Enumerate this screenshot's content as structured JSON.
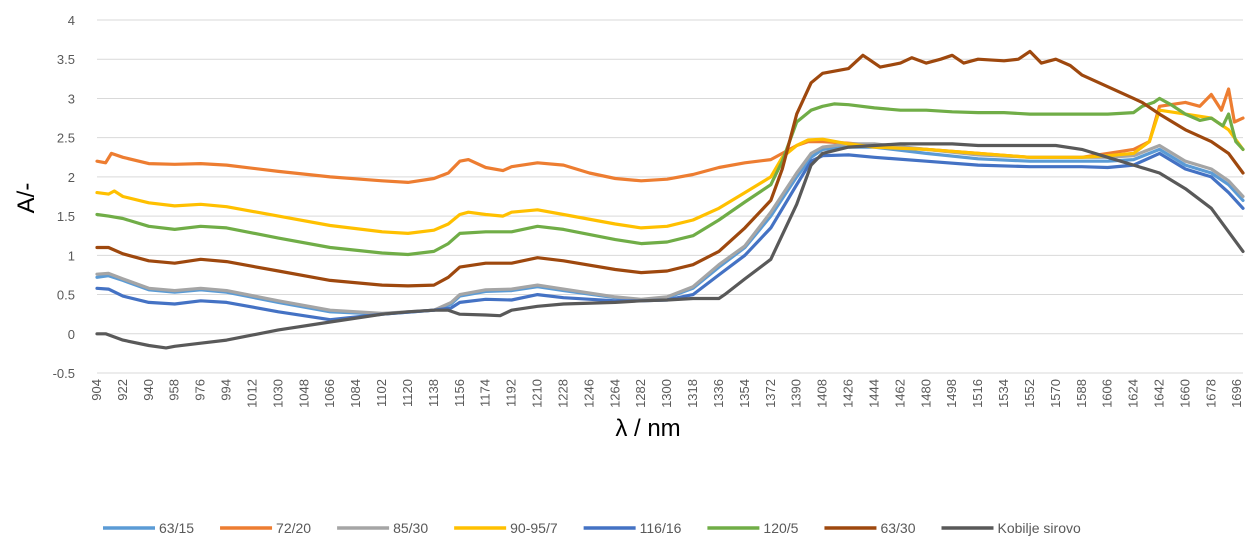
{
  "chart_data": {
    "type": "line",
    "title": "",
    "xlabel": "λ / nm",
    "ylabel": "A/-",
    "ylim": [
      -0.5,
      4
    ],
    "yticks": [
      -0.5,
      0,
      0.5,
      1,
      1.5,
      2,
      2.5,
      3,
      3.5,
      4
    ],
    "ytick_labels": [
      "-0.5",
      "0",
      "0.5",
      "1",
      "1.5",
      "2",
      "2.5",
      "3",
      "3.5",
      "4"
    ],
    "xlim": [
      904,
      1700
    ],
    "xticks": [
      904,
      922,
      940,
      958,
      976,
      994,
      1012,
      1030,
      1048,
      1066,
      1084,
      1102,
      1120,
      1138,
      1156,
      1174,
      1192,
      1210,
      1228,
      1246,
      1264,
      1282,
      1300,
      1318,
      1336,
      1354,
      1372,
      1390,
      1408,
      1426,
      1444,
      1462,
      1480,
      1498,
      1516,
      1534,
      1552,
      1570,
      1588,
      1606,
      1624,
      1642,
      1660,
      1678,
      1696
    ],
    "xtick_labels": [
      "904",
      "922",
      "940",
      "958",
      "976",
      "994",
      "1012",
      "1030",
      "1048",
      "1066",
      "1084",
      "1102",
      "1120",
      "1138",
      "1156",
      "1174",
      "1192",
      "1210",
      "1228",
      "1246",
      "1264",
      "1282",
      "1300",
      "1318",
      "1336",
      "1354",
      "1372",
      "1390",
      "1408",
      "1426",
      "1444",
      "1462",
      "1480",
      "1498",
      "1516",
      "1534",
      "1552",
      "1570",
      "1588",
      "1606",
      "1624",
      "1642",
      "1660",
      "1678",
      "1696"
    ],
    "grid": "horizontal",
    "legend_position": "bottom",
    "series": [
      {
        "name": "63/15",
        "color": "#5b9bd5",
        "x": [
          904,
          912,
          922,
          940,
          958,
          976,
          994,
          1030,
          1066,
          1102,
          1138,
          1150,
          1156,
          1174,
          1192,
          1210,
          1228,
          1264,
          1282,
          1300,
          1318,
          1336,
          1354,
          1372,
          1390,
          1400,
          1408,
          1426,
          1444,
          1480,
          1516,
          1552,
          1588,
          1606,
          1624,
          1642,
          1660,
          1678,
          1690,
          1700
        ],
        "y": [
          0.72,
          0.74,
          0.68,
          0.56,
          0.53,
          0.56,
          0.53,
          0.4,
          0.28,
          0.25,
          0.3,
          0.38,
          0.48,
          0.54,
          0.55,
          0.6,
          0.55,
          0.46,
          0.43,
          0.46,
          0.58,
          0.85,
          1.1,
          1.5,
          2.0,
          2.25,
          2.35,
          2.38,
          2.38,
          2.3,
          2.23,
          2.2,
          2.2,
          2.2,
          2.22,
          2.35,
          2.15,
          2.05,
          1.9,
          1.7
        ]
      },
      {
        "name": "72/20",
        "color": "#ed7d31",
        "x": [
          904,
          910,
          914,
          922,
          940,
          958,
          976,
          994,
          1030,
          1066,
          1102,
          1120,
          1138,
          1148,
          1156,
          1162,
          1174,
          1186,
          1192,
          1210,
          1228,
          1246,
          1264,
          1282,
          1300,
          1318,
          1336,
          1354,
          1372,
          1380,
          1390,
          1398,
          1408,
          1426,
          1444,
          1480,
          1516,
          1552,
          1588,
          1606,
          1624,
          1635,
          1642,
          1660,
          1670,
          1678,
          1685,
          1690,
          1694,
          1700
        ],
        "y": [
          2.2,
          2.18,
          2.3,
          2.25,
          2.17,
          2.16,
          2.17,
          2.15,
          2.07,
          2.0,
          1.95,
          1.93,
          1.98,
          2.05,
          2.2,
          2.22,
          2.12,
          2.08,
          2.13,
          2.18,
          2.15,
          2.05,
          1.98,
          1.95,
          1.97,
          2.03,
          2.12,
          2.18,
          2.22,
          2.3,
          2.4,
          2.45,
          2.45,
          2.43,
          2.4,
          2.35,
          2.3,
          2.25,
          2.25,
          2.3,
          2.35,
          2.45,
          2.9,
          2.95,
          2.9,
          3.05,
          2.85,
          3.12,
          2.7,
          2.75
        ]
      },
      {
        "name": "85/30",
        "color": "#a5a5a5",
        "x": [
          904,
          912,
          922,
          940,
          958,
          976,
          994,
          1030,
          1066,
          1102,
          1138,
          1150,
          1156,
          1174,
          1192,
          1210,
          1228,
          1264,
          1282,
          1300,
          1318,
          1336,
          1354,
          1372,
          1390,
          1400,
          1408,
          1426,
          1444,
          1480,
          1516,
          1552,
          1588,
          1606,
          1624,
          1642,
          1660,
          1678,
          1690,
          1700
        ],
        "y": [
          0.76,
          0.77,
          0.7,
          0.58,
          0.55,
          0.58,
          0.55,
          0.42,
          0.3,
          0.26,
          0.3,
          0.4,
          0.5,
          0.56,
          0.57,
          0.62,
          0.57,
          0.47,
          0.44,
          0.47,
          0.6,
          0.88,
          1.12,
          1.55,
          2.05,
          2.3,
          2.38,
          2.42,
          2.42,
          2.35,
          2.28,
          2.25,
          2.25,
          2.25,
          2.27,
          2.4,
          2.2,
          2.1,
          1.95,
          1.75
        ]
      },
      {
        "name": "90-95/7",
        "color": "#ffc000",
        "x": [
          904,
          912,
          916,
          922,
          940,
          958,
          976,
          994,
          1030,
          1066,
          1102,
          1120,
          1138,
          1148,
          1156,
          1162,
          1174,
          1186,
          1192,
          1210,
          1228,
          1264,
          1282,
          1300,
          1318,
          1336,
          1354,
          1372,
          1380,
          1390,
          1398,
          1408,
          1426,
          1444,
          1480,
          1516,
          1552,
          1588,
          1606,
          1624,
          1635,
          1642,
          1660,
          1678,
          1690,
          1700
        ],
        "y": [
          1.8,
          1.78,
          1.82,
          1.75,
          1.67,
          1.63,
          1.65,
          1.62,
          1.5,
          1.38,
          1.3,
          1.28,
          1.32,
          1.4,
          1.52,
          1.55,
          1.52,
          1.5,
          1.55,
          1.58,
          1.52,
          1.4,
          1.35,
          1.37,
          1.45,
          1.6,
          1.8,
          2.0,
          2.25,
          2.4,
          2.47,
          2.48,
          2.42,
          2.38,
          2.35,
          2.3,
          2.25,
          2.25,
          2.27,
          2.3,
          2.45,
          2.85,
          2.8,
          2.75,
          2.6,
          2.35
        ]
      },
      {
        "name": "116/16",
        "color": "#4472c4",
        "x": [
          904,
          912,
          922,
          940,
          958,
          976,
          994,
          1030,
          1066,
          1102,
          1138,
          1150,
          1156,
          1174,
          1192,
          1210,
          1228,
          1264,
          1282,
          1300,
          1318,
          1336,
          1354,
          1372,
          1390,
          1400,
          1408,
          1426,
          1444,
          1480,
          1516,
          1552,
          1588,
          1606,
          1624,
          1642,
          1660,
          1678,
          1690,
          1700
        ],
        "y": [
          0.58,
          0.57,
          0.48,
          0.4,
          0.38,
          0.42,
          0.4,
          0.28,
          0.18,
          0.25,
          0.3,
          0.33,
          0.4,
          0.44,
          0.43,
          0.5,
          0.46,
          0.42,
          0.42,
          0.43,
          0.5,
          0.75,
          1.0,
          1.35,
          1.9,
          2.2,
          2.27,
          2.28,
          2.25,
          2.2,
          2.15,
          2.13,
          2.13,
          2.12,
          2.15,
          2.3,
          2.1,
          2.0,
          1.8,
          1.6
        ]
      },
      {
        "name": "120/5",
        "color": "#70ad47",
        "x": [
          904,
          912,
          922,
          940,
          958,
          976,
          994,
          1030,
          1066,
          1102,
          1120,
          1138,
          1148,
          1156,
          1174,
          1192,
          1210,
          1228,
          1264,
          1282,
          1300,
          1318,
          1336,
          1354,
          1372,
          1380,
          1390,
          1400,
          1408,
          1416,
          1426,
          1444,
          1462,
          1480,
          1498,
          1516,
          1534,
          1552,
          1570,
          1588,
          1606,
          1624,
          1630,
          1638,
          1642,
          1650,
          1660,
          1670,
          1678,
          1686,
          1690,
          1695,
          1700
        ],
        "y": [
          1.52,
          1.5,
          1.47,
          1.37,
          1.33,
          1.37,
          1.35,
          1.22,
          1.1,
          1.03,
          1.01,
          1.05,
          1.15,
          1.28,
          1.3,
          1.3,
          1.37,
          1.33,
          1.2,
          1.15,
          1.17,
          1.25,
          1.45,
          1.68,
          1.9,
          2.2,
          2.7,
          2.85,
          2.9,
          2.93,
          2.92,
          2.88,
          2.85,
          2.85,
          2.83,
          2.82,
          2.82,
          2.8,
          2.8,
          2.8,
          2.8,
          2.82,
          2.9,
          2.95,
          3.0,
          2.92,
          2.8,
          2.72,
          2.75,
          2.65,
          2.8,
          2.45,
          2.35
        ]
      },
      {
        "name": "63/30",
        "color": "#9e480e",
        "x": [
          904,
          912,
          922,
          940,
          958,
          976,
          994,
          1030,
          1066,
          1102,
          1120,
          1138,
          1148,
          1156,
          1174,
          1192,
          1210,
          1228,
          1264,
          1282,
          1300,
          1318,
          1336,
          1354,
          1372,
          1380,
          1390,
          1400,
          1408,
          1426,
          1436,
          1440,
          1448,
          1462,
          1470,
          1480,
          1490,
          1498,
          1506,
          1516,
          1534,
          1544,
          1552,
          1560,
          1570,
          1580,
          1588,
          1606,
          1624,
          1630,
          1642,
          1660,
          1678,
          1690,
          1700
        ],
        "y": [
          1.1,
          1.1,
          1.02,
          0.93,
          0.9,
          0.95,
          0.92,
          0.8,
          0.68,
          0.62,
          0.61,
          0.62,
          0.72,
          0.85,
          0.9,
          0.9,
          0.97,
          0.93,
          0.82,
          0.78,
          0.8,
          0.88,
          1.05,
          1.35,
          1.7,
          2.1,
          2.8,
          3.2,
          3.32,
          3.38,
          3.55,
          3.5,
          3.4,
          3.45,
          3.52,
          3.45,
          3.5,
          3.55,
          3.45,
          3.5,
          3.48,
          3.5,
          3.6,
          3.45,
          3.5,
          3.42,
          3.3,
          3.15,
          3.0,
          2.95,
          2.8,
          2.6,
          2.45,
          2.3,
          2.05
        ]
      },
      {
        "name": "Kobilje sirovo",
        "color": "#595959",
        "x": [
          904,
          910,
          922,
          940,
          952,
          958,
          976,
          994,
          1030,
          1066,
          1102,
          1120,
          1138,
          1148,
          1156,
          1174,
          1184,
          1192,
          1210,
          1228,
          1264,
          1282,
          1300,
          1318,
          1336,
          1340,
          1354,
          1372,
          1390,
          1400,
          1408,
          1426,
          1444,
          1462,
          1480,
          1498,
          1516,
          1534,
          1552,
          1570,
          1588,
          1606,
          1624,
          1642,
          1660,
          1678,
          1690,
          1700
        ],
        "y": [
          0.0,
          0.0,
          -0.08,
          -0.15,
          -0.18,
          -0.16,
          -0.12,
          -0.08,
          0.05,
          0.15,
          0.25,
          0.28,
          0.3,
          0.3,
          0.25,
          0.24,
          0.23,
          0.3,
          0.35,
          0.38,
          0.4,
          0.42,
          0.43,
          0.45,
          0.45,
          0.5,
          0.7,
          0.95,
          1.65,
          2.15,
          2.3,
          2.38,
          2.4,
          2.42,
          2.42,
          2.42,
          2.4,
          2.4,
          2.4,
          2.4,
          2.35,
          2.25,
          2.15,
          2.05,
          1.85,
          1.6,
          1.3,
          1.05
        ]
      }
    ]
  }
}
